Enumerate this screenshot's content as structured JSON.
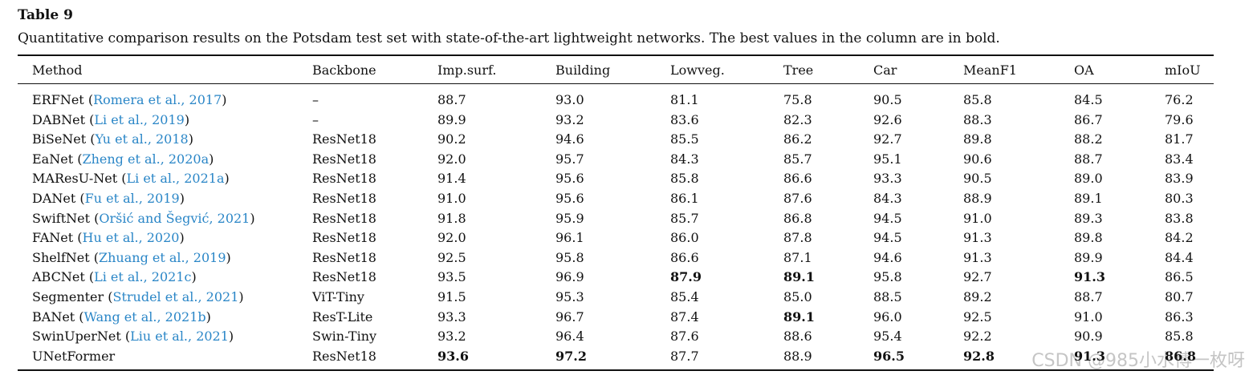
{
  "title": "Table 9",
  "caption": "Quantitative comparison results on the Potsdam test set with state-of-the-art lightweight networks. The best values in the column are in bold.",
  "table": {
    "header": [
      "Method",
      "Backbone",
      "Imp.surf.",
      "Building",
      "Lowveg.",
      "Tree",
      "Car",
      "MeanF1",
      "OA",
      "mIoU"
    ],
    "rows": [
      {
        "method": [
          "ERFNet (",
          "Romera et al., 2017",
          ")"
        ],
        "cells": [
          "–",
          "88.7",
          "93.0",
          "81.1",
          "75.8",
          "90.5",
          "85.8",
          "84.5",
          "76.2"
        ],
        "bold": []
      },
      {
        "method": [
          "DABNet (",
          "Li et al., 2019",
          ")"
        ],
        "cells": [
          "–",
          "89.9",
          "93.2",
          "83.6",
          "82.3",
          "92.6",
          "88.3",
          "86.7",
          "79.6"
        ],
        "bold": []
      },
      {
        "method": [
          "BiSeNet (",
          "Yu et al., 2018",
          ")"
        ],
        "cells": [
          "ResNet18",
          "90.2",
          "94.6",
          "85.5",
          "86.2",
          "92.7",
          "89.8",
          "88.2",
          "81.7"
        ],
        "bold": []
      },
      {
        "method": [
          "EaNet (",
          "Zheng et al., 2020a",
          ")"
        ],
        "cells": [
          "ResNet18",
          "92.0",
          "95.7",
          "84.3",
          "85.7",
          "95.1",
          "90.6",
          "88.7",
          "83.4"
        ],
        "bold": []
      },
      {
        "method": [
          "MAResU-Net (",
          "Li et al., 2021a",
          ")"
        ],
        "cells": [
          "ResNet18",
          "91.4",
          "95.6",
          "85.8",
          "86.6",
          "93.3",
          "90.5",
          "89.0",
          "83.9"
        ],
        "bold": []
      },
      {
        "method": [
          "DANet (",
          "Fu et al., 2019",
          ")"
        ],
        "cells": [
          "ResNet18",
          "91.0",
          "95.6",
          "86.1",
          "87.6",
          "84.3",
          "88.9",
          "89.1",
          "80.3"
        ],
        "bold": []
      },
      {
        "method": [
          "SwiftNet (",
          "Oršić and Šegvić, 2021",
          ")"
        ],
        "cells": [
          "ResNet18",
          "91.8",
          "95.9",
          "85.7",
          "86.8",
          "94.5",
          "91.0",
          "89.3",
          "83.8"
        ],
        "bold": []
      },
      {
        "method": [
          "FANet (",
          "Hu et al., 2020",
          ")"
        ],
        "cells": [
          "ResNet18",
          "92.0",
          "96.1",
          "86.0",
          "87.8",
          "94.5",
          "91.3",
          "89.8",
          "84.2"
        ],
        "bold": []
      },
      {
        "method": [
          "ShelfNet (",
          "Zhuang et al., 2019",
          ")"
        ],
        "cells": [
          "ResNet18",
          "92.5",
          "95.8",
          "86.6",
          "87.1",
          "94.6",
          "91.3",
          "89.9",
          "84.4"
        ],
        "bold": []
      },
      {
        "method": [
          "ABCNet (",
          "Li et al., 2021c",
          ")"
        ],
        "cells": [
          "ResNet18",
          "93.5",
          "96.9",
          "87.9",
          "89.1",
          "95.8",
          "92.7",
          "91.3",
          "86.5"
        ],
        "bold": [
          3,
          4,
          7
        ]
      },
      {
        "method": [
          "Segmenter (",
          "Strudel et al., 2021",
          ")"
        ],
        "cells": [
          "ViT-Tiny",
          "91.5",
          "95.3",
          "85.4",
          "85.0",
          "88.5",
          "89.2",
          "88.7",
          "80.7"
        ],
        "bold": []
      },
      {
        "method": [
          "BANet (",
          "Wang et al., 2021b",
          ")"
        ],
        "cells": [
          "ResT-Lite",
          "93.3",
          "96.7",
          "87.4",
          "89.1",
          "96.0",
          "92.5",
          "91.0",
          "86.3"
        ],
        "bold": [
          4
        ]
      },
      {
        "method": [
          "SwinUperNet (",
          "Liu et al., 2021",
          ")"
        ],
        "cells": [
          "Swin-Tiny",
          "93.2",
          "96.4",
          "87.6",
          "88.6",
          "95.4",
          "92.2",
          "90.9",
          "85.8"
        ],
        "bold": []
      },
      {
        "method": [
          "UNetFormer"
        ],
        "cells": [
          "ResNet18",
          "93.6",
          "97.2",
          "87.7",
          "88.9",
          "96.5",
          "92.8",
          "91.3",
          "86.8"
        ],
        "bold": [
          1,
          2,
          5,
          6,
          7,
          8
        ]
      }
    ]
  },
  "watermark": "CSDN @985小水博一枚呀"
}
